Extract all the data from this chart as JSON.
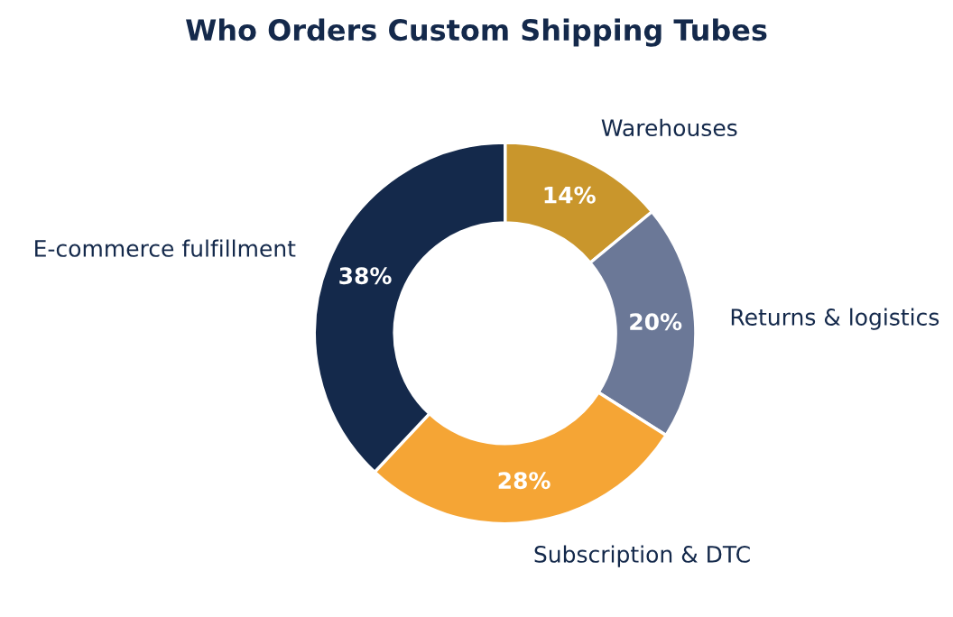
{
  "chart_data": {
    "type": "donut",
    "title": "Who Orders Custom Shipping Tubes",
    "categories": [
      "Warehouses",
      "Returns & logistics",
      "Subscription & DTC",
      "E-commerce fulfillment"
    ],
    "values": [
      14,
      20,
      28,
      38
    ],
    "colors": [
      "#c9962c",
      "#6b7897",
      "#f5a535",
      "#14294b"
    ],
    "value_labels": [
      "14%",
      "20%",
      "28%",
      "38%"
    ],
    "legend": false
  }
}
